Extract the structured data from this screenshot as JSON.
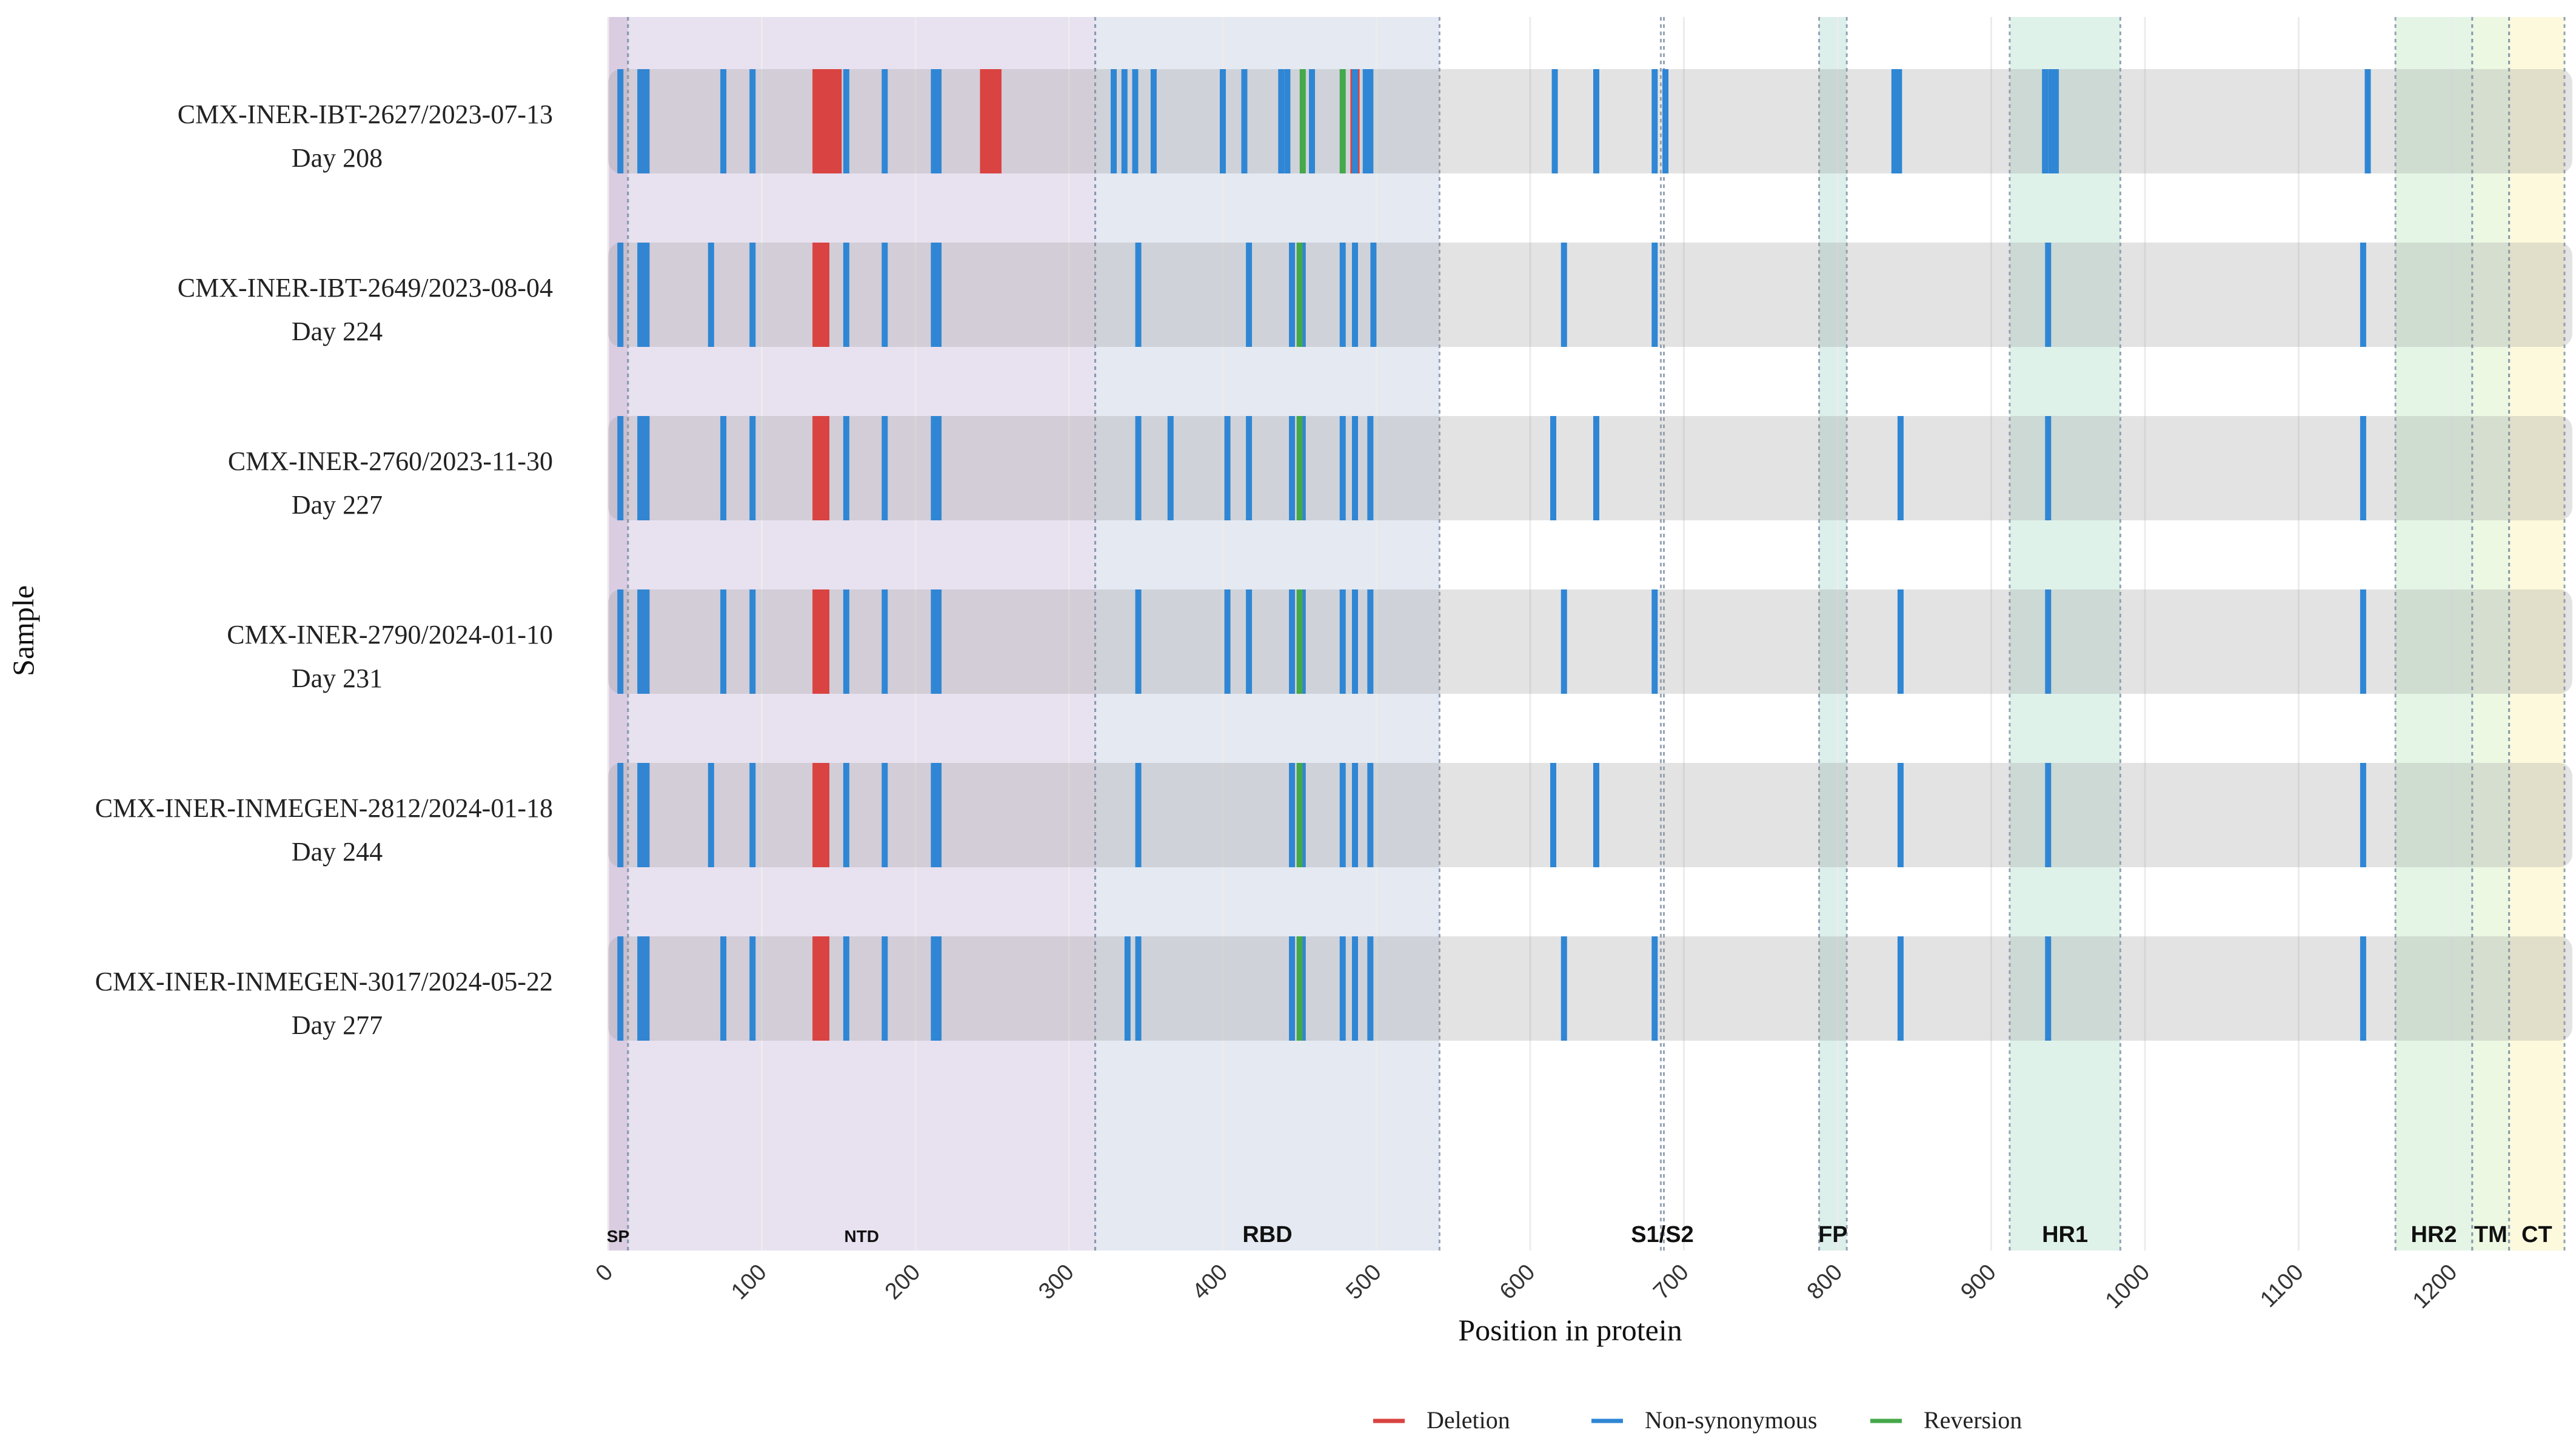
{
  "chart_data": {
    "type": "mutation-track",
    "xlabel": "Position in protein",
    "ylabel": "Sample",
    "xlim": [
      0,
      1273
    ],
    "x_ticks": [
      0,
      100,
      200,
      300,
      400,
      500,
      600,
      700,
      800,
      900,
      1000,
      1100,
      1200
    ],
    "x_tick_labels": [
      "0",
      "100",
      "200",
      "300",
      "400",
      "500",
      "600",
      "700",
      "800",
      "900",
      "1000",
      "1100",
      "1200"
    ],
    "domains": [
      {
        "label": "SP",
        "start": 0,
        "end": 13,
        "color": "#d4c3dc"
      },
      {
        "label": "NTD",
        "start": 13,
        "end": 317,
        "color": "#e4dcec"
      },
      {
        "label": "RBD",
        "start": 317,
        "end": 541,
        "color": "#dfe5f0"
      },
      {
        "label": "S1/S2",
        "start": 685,
        "end": 687,
        "color": "#cfdbe6"
      },
      {
        "label": "FP",
        "start": 788,
        "end": 806,
        "color": "#d6ece6"
      },
      {
        "label": "HR1",
        "start": 912,
        "end": 984,
        "color": "#d9f0e6"
      },
      {
        "label": "HR2",
        "start": 1163,
        "end": 1213,
        "color": "#dff3e0"
      },
      {
        "label": "TM",
        "start": 1213,
        "end": 1237,
        "color": "#eaf7de"
      },
      {
        "label": "CT",
        "start": 1237,
        "end": 1273,
        "color": "#fbf8d6"
      }
    ],
    "series_legend": [
      {
        "name": "Deletion",
        "color": "#d94341"
      },
      {
        "name": "Non-synonymous",
        "color": "#2f86d4"
      },
      {
        "name": "Reversion",
        "color": "#45a84a"
      }
    ],
    "samples": [
      {
        "name": "CMX-INER-IBT-2627/2023-07-13",
        "day": "Day 208",
        "deletions": [
          [
            21,
            27
          ],
          [
            133,
            152
          ],
          [
            242,
            256
          ],
          [
            483,
            489
          ]
        ],
        "reversions": [
          452,
          478
        ],
        "nonsyn": [
          8,
          21,
          25,
          75,
          94,
          155,
          180,
          212,
          215,
          329,
          336,
          343,
          355,
          400,
          414,
          438,
          442,
          458,
          486,
          493,
          496,
          616,
          643,
          681,
          688,
          837,
          840,
          935,
          939,
          942,
          1145
        ]
      },
      {
        "name": "CMX-INER-IBT-2649/2023-08-04",
        "day": "Day 224",
        "deletions": [
          [
            21,
            27
          ],
          [
            133,
            144
          ]
        ],
        "reversions": [
          450
        ],
        "nonsyn": [
          8,
          21,
          25,
          67,
          94,
          155,
          180,
          212,
          215,
          345,
          417,
          445,
          452,
          478,
          486,
          498,
          622,
          681,
          937,
          1142
        ]
      },
      {
        "name": "CMX-INER-2760/2023-11-30",
        "day": "Day 227",
        "deletions": [
          [
            21,
            27
          ],
          [
            133,
            144
          ]
        ],
        "reversions": [
          450
        ],
        "nonsyn": [
          8,
          21,
          25,
          75,
          94,
          155,
          180,
          212,
          215,
          345,
          366,
          403,
          417,
          445,
          452,
          478,
          486,
          496,
          615,
          643,
          841,
          937,
          1142
        ]
      },
      {
        "name": "CMX-INER-2790/2024-01-10",
        "day": "Day 231",
        "deletions": [
          [
            21,
            27
          ],
          [
            133,
            144
          ]
        ],
        "reversions": [
          450
        ],
        "nonsyn": [
          8,
          21,
          25,
          75,
          94,
          155,
          180,
          212,
          215,
          345,
          403,
          417,
          445,
          452,
          478,
          486,
          496,
          622,
          681,
          841,
          937,
          1142
        ]
      },
      {
        "name": "CMX-INER-INMEGEN-2812/2024-01-18",
        "day": "Day 244",
        "deletions": [
          [
            21,
            27
          ],
          [
            133,
            144
          ]
        ],
        "reversions": [
          450
        ],
        "nonsyn": [
          8,
          21,
          25,
          67,
          94,
          155,
          180,
          212,
          215,
          345,
          445,
          452,
          478,
          486,
          496,
          615,
          643,
          841,
          937,
          1142
        ]
      },
      {
        "name": "CMX-INER-INMEGEN-3017/2024-05-22",
        "day": "Day 277",
        "deletions": [
          [
            21,
            27
          ],
          [
            133,
            144
          ]
        ],
        "reversions": [
          450
        ],
        "nonsyn": [
          8,
          21,
          25,
          75,
          94,
          155,
          180,
          212,
          215,
          338,
          345,
          445,
          452,
          478,
          486,
          496,
          622,
          681,
          841,
          937,
          1142
        ]
      }
    ]
  }
}
